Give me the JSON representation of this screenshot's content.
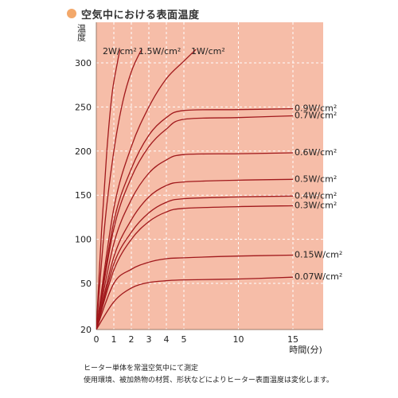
{
  "title": "空気中における表面温度",
  "notes": [
    "ヒーター単体を常温空気中にて測定",
    "使用環境、被加熱物の材質、形状などによりヒーター表面温度は変化します。"
  ],
  "colors": {
    "title_dot": "#f3a86a",
    "plot_bg": "#f6bda8",
    "grid": "#ffffff",
    "curve": "#a1191c",
    "text": "#222222"
  },
  "chart_data": {
    "type": "line",
    "ylabel": "温度",
    "xlabel": "時間(分)",
    "xlim": [
      0,
      16.8
    ],
    "ylim": [
      20,
      330
    ],
    "x_breakpoint": 5,
    "x_ticks": [
      0,
      1,
      2,
      3,
      4,
      5,
      10,
      15
    ],
    "y_ticks": [
      20,
      50,
      100,
      150,
      200,
      250,
      300
    ],
    "grid": true,
    "series": [
      {
        "name": "2W/cm²",
        "points": [
          [
            0,
            20
          ],
          [
            0.3,
            110
          ],
          [
            0.6,
            200
          ],
          [
            0.9,
            265
          ],
          [
            1.2,
            300
          ],
          [
            1.4,
            320
          ]
        ]
      },
      {
        "name": "1.5W/cm²",
        "points": [
          [
            0,
            20
          ],
          [
            0.5,
            120
          ],
          [
            1,
            200
          ],
          [
            1.5,
            255
          ],
          [
            2,
            290
          ],
          [
            2.5,
            312
          ],
          [
            2.8,
            320
          ]
        ]
      },
      {
        "name": "1W/cm²",
        "points": [
          [
            0,
            20
          ],
          [
            1,
            135
          ],
          [
            2,
            205
          ],
          [
            3,
            250
          ],
          [
            4,
            282
          ],
          [
            5,
            302
          ],
          [
            6.5,
            320
          ]
        ]
      },
      {
        "name": "0.9W/cm²",
        "points": [
          [
            0,
            20
          ],
          [
            1,
            120
          ],
          [
            2,
            180
          ],
          [
            3,
            218
          ],
          [
            4,
            238
          ],
          [
            5,
            246
          ],
          [
            10,
            247
          ],
          [
            15,
            248
          ]
        ]
      },
      {
        "name": "0.7W/cm²",
        "points": [
          [
            0,
            20
          ],
          [
            1,
            112
          ],
          [
            2,
            170
          ],
          [
            3,
            205
          ],
          [
            4,
            225
          ],
          [
            5,
            236
          ],
          [
            10,
            238
          ],
          [
            15,
            240
          ]
        ]
      },
      {
        "name": "0.6W/cm²",
        "points": [
          [
            0,
            20
          ],
          [
            1,
            95
          ],
          [
            2,
            145
          ],
          [
            3,
            175
          ],
          [
            4,
            190
          ],
          [
            5,
            196
          ],
          [
            10,
            197
          ],
          [
            15,
            198
          ]
        ]
      },
      {
        "name": "0.5W/cm²",
        "points": [
          [
            0,
            20
          ],
          [
            1,
            80
          ],
          [
            2,
            122
          ],
          [
            3,
            148
          ],
          [
            4,
            161
          ],
          [
            5,
            165
          ],
          [
            10,
            167
          ],
          [
            15,
            168
          ]
        ]
      },
      {
        "name": "0.4W/cm²",
        "points": [
          [
            0,
            20
          ],
          [
            1,
            72
          ],
          [
            2,
            108
          ],
          [
            3,
            130
          ],
          [
            4,
            142
          ],
          [
            5,
            146
          ],
          [
            10,
            148
          ],
          [
            15,
            149
          ]
        ]
      },
      {
        "name": "0.3W/cm²",
        "points": [
          [
            0,
            20
          ],
          [
            1,
            65
          ],
          [
            2,
            100
          ],
          [
            3,
            120
          ],
          [
            4,
            131
          ],
          [
            5,
            135
          ],
          [
            10,
            137
          ],
          [
            15,
            138
          ]
        ]
      },
      {
        "name": "0.15W/cm²",
        "points": [
          [
            0,
            20
          ],
          [
            1,
            50
          ],
          [
            2,
            66
          ],
          [
            3,
            74
          ],
          [
            4,
            78
          ],
          [
            5,
            79
          ],
          [
            10,
            81
          ],
          [
            15,
            82
          ]
        ]
      },
      {
        "name": "0.07W/cm²",
        "points": [
          [
            0,
            20
          ],
          [
            1,
            38
          ],
          [
            2,
            47
          ],
          [
            3,
            51
          ],
          [
            4,
            53
          ],
          [
            5,
            54
          ],
          [
            10,
            55
          ],
          [
            15,
            57
          ]
        ]
      }
    ]
  }
}
